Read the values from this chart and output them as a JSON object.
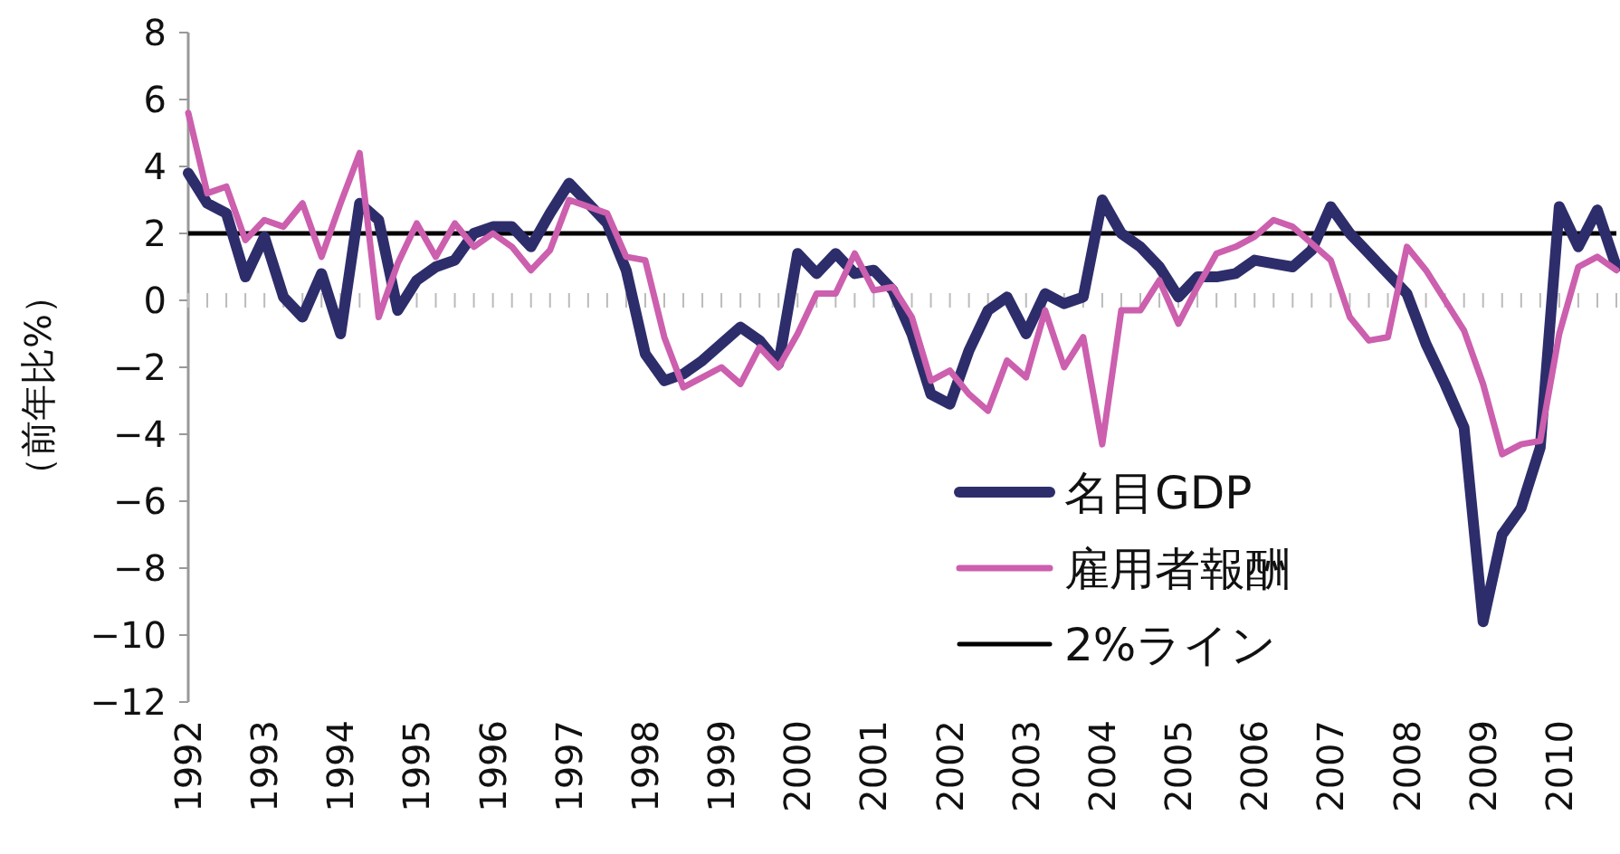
{
  "chart_data": {
    "type": "line",
    "categories": [
      "1992",
      null,
      null,
      null,
      "1993",
      null,
      null,
      null,
      "1994",
      null,
      null,
      null,
      "1995",
      null,
      null,
      null,
      "1996",
      null,
      null,
      null,
      "1997",
      null,
      null,
      null,
      "1998",
      null,
      null,
      null,
      "1999",
      null,
      null,
      null,
      "2000",
      null,
      null,
      null,
      "2001",
      null,
      null,
      null,
      "2002",
      null,
      null,
      null,
      "2003",
      null,
      null,
      null,
      "2004",
      null,
      null,
      null,
      "2005",
      null,
      null,
      null,
      "2006",
      null,
      null,
      null,
      "2007",
      null,
      null,
      null,
      "2008",
      null,
      null,
      null,
      "2009",
      null,
      null,
      null,
      "2010",
      null,
      null,
      null
    ],
    "series": [
      {
        "name": "名目GDP",
        "color": "#2e2d6b",
        "values": [
          3.8,
          2.9,
          2.6,
          0.7,
          1.9,
          0.1,
          -0.5,
          0.8,
          -1.0,
          2.9,
          2.4,
          -0.3,
          0.6,
          1.0,
          1.2,
          2.0,
          2.2,
          2.2,
          1.6,
          2.6,
          3.5,
          2.9,
          2.3,
          0.9,
          -1.6,
          -2.4,
          -2.2,
          -1.8,
          -1.3,
          -0.8,
          -1.2,
          -1.9,
          1.4,
          0.8,
          1.4,
          0.8,
          0.9,
          0.3,
          -1.0,
          -2.8,
          -3.1,
          -1.5,
          -0.3,
          0.1,
          -1.0,
          0.2,
          -0.1,
          0.1,
          3.0,
          2.0,
          1.6,
          1.0,
          0.1,
          0.7,
          0.7,
          0.8,
          1.2,
          1.1,
          1.0,
          1.5,
          2.8,
          2.0,
          1.4,
          0.8,
          0.2,
          -1.3,
          -2.5,
          -3.8,
          -9.6,
          -7.0,
          -6.2,
          -4.4,
          2.8,
          1.6,
          2.7,
          1.0
        ]
      },
      {
        "name": "雇用者報酬",
        "color": "#cc5fae",
        "values": [
          5.6,
          3.2,
          3.4,
          1.8,
          2.4,
          2.2,
          2.9,
          1.3,
          2.9,
          4.4,
          -0.5,
          1.1,
          2.3,
          1.3,
          2.3,
          1.6,
          2.0,
          1.6,
          0.9,
          1.5,
          3.0,
          2.8,
          2.6,
          1.3,
          1.2,
          -1.1,
          -2.6,
          -2.3,
          -2.0,
          -2.5,
          -1.4,
          -2.0,
          -1.0,
          0.2,
          0.2,
          1.4,
          0.3,
          0.4,
          -0.5,
          -2.4,
          -2.1,
          -2.8,
          -3.3,
          -1.8,
          -2.3,
          -0.3,
          -2.0,
          -1.1,
          -4.3,
          -0.3,
          -0.3,
          0.6,
          -0.7,
          0.4,
          1.4,
          1.6,
          1.9,
          2.4,
          2.2,
          1.7,
          1.2,
          -0.5,
          -1.2,
          -1.1,
          1.6,
          0.9,
          0.0,
          -0.9,
          -2.5,
          -4.6,
          -4.3,
          -4.2,
          -1.0,
          1.0,
          1.3,
          0.9
        ]
      }
    ],
    "ylabel": "（前年比%）",
    "ylim": [
      -12,
      8
    ],
    "yticks": [
      -12,
      -10,
      -8,
      -6,
      -4,
      -2,
      0,
      2,
      4,
      6,
      8
    ],
    "ref_lines": [
      {
        "axis": "y",
        "value": 2,
        "label": "2%ライン",
        "color": "#000000"
      }
    ],
    "legend": "bottom right"
  }
}
